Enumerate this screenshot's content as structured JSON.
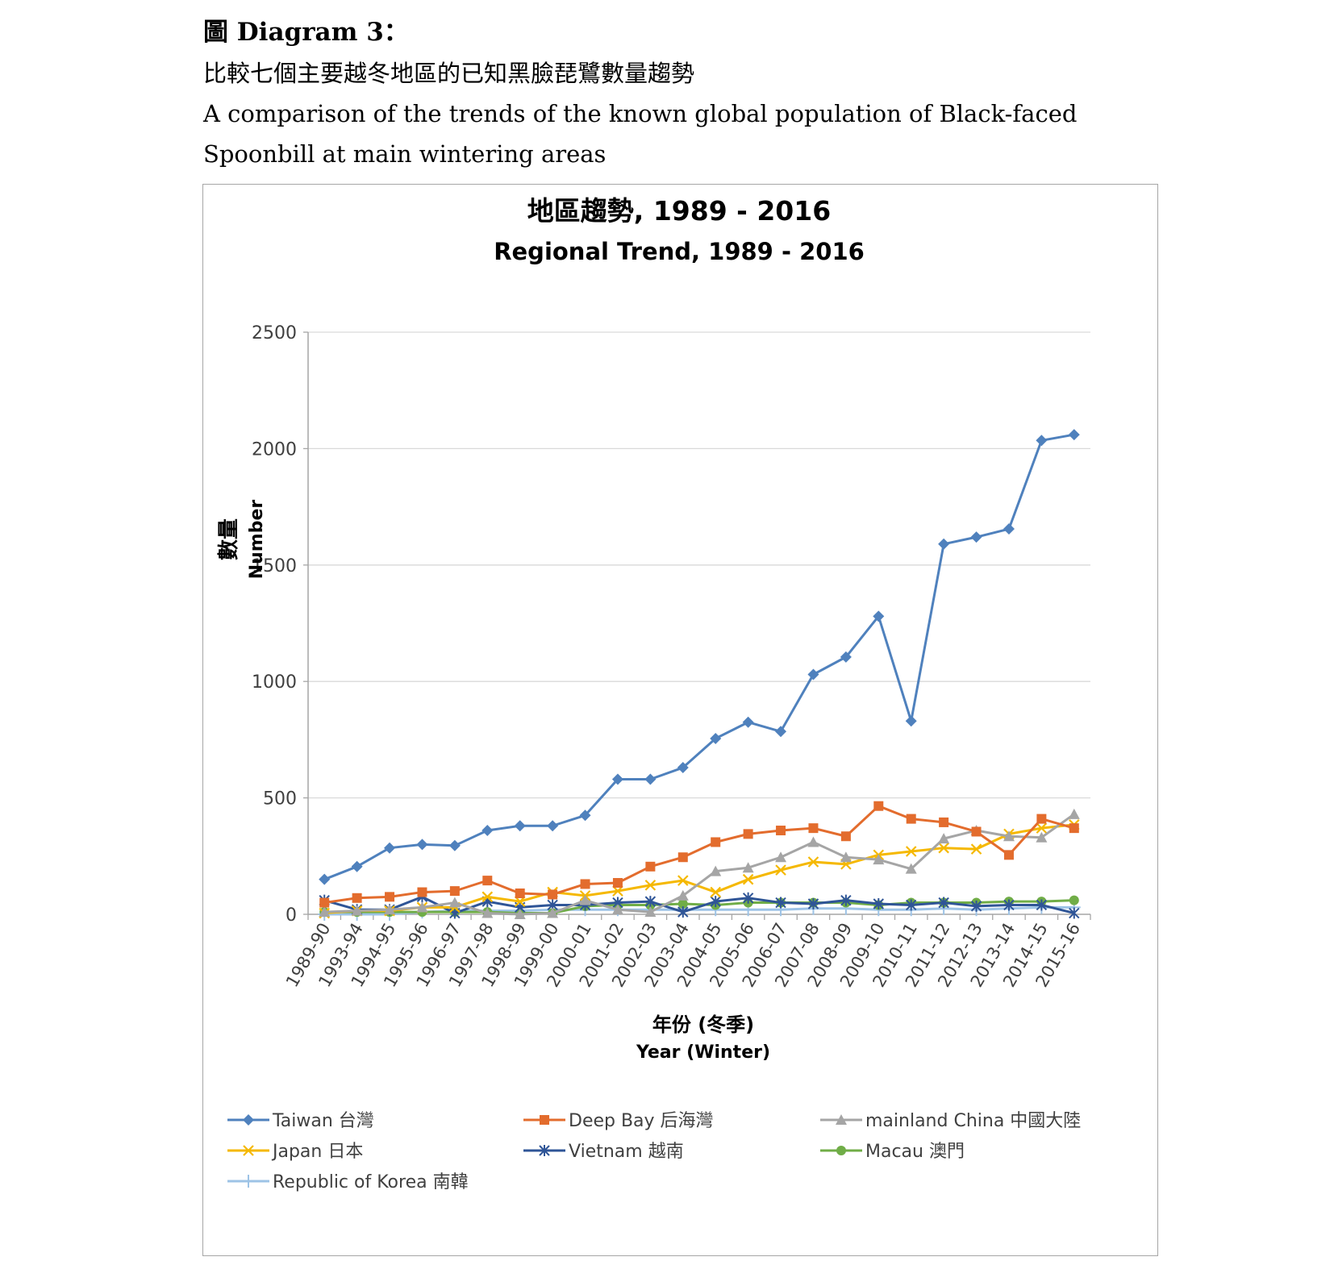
{
  "heading": {
    "title": "圖 Diagram 3：",
    "subtitle_zh": "比較七個主要越冬地區的已知黑臉琵鷺數量趨勢",
    "subtitle_en_1": "A comparison of the trends of the known global population of Black-faced",
    "subtitle_en_2": "Spoonbill at main wintering areas"
  },
  "chart_data": {
    "type": "line",
    "title_zh": "地區趨勢, 1989 - 2016",
    "title_en": "Regional Trend, 1989 - 2016",
    "ylabel_zh": "數量",
    "ylabel_en": "Number",
    "xlabel_zh": "年份 (冬季)",
    "xlabel_en": "Year (Winter)",
    "ylim": [
      0,
      2500
    ],
    "yticks": [
      0,
      500,
      1000,
      1500,
      2000,
      2500
    ],
    "grid": true,
    "legend_position": "bottom",
    "categories": [
      "1989-90",
      "1993-94",
      "1994-95",
      "1995-96",
      "1996-97",
      "1997-98",
      "1998-99",
      "1999-00",
      "2000-01",
      "2001-02",
      "2002-03",
      "2003-04",
      "2004-05",
      "2005-06",
      "2006-07",
      "2007-08",
      "2008-09",
      "2009-10",
      "2010-11",
      "2011-12",
      "2012-13",
      "2013-14",
      "2014-15",
      "2015-16"
    ],
    "series": [
      {
        "name": "Taiwan 台灣",
        "color": "#4f81bd",
        "marker": "diamond",
        "values": [
          150,
          205,
          285,
          300,
          295,
          360,
          380,
          380,
          425,
          580,
          580,
          630,
          755,
          825,
          785,
          1030,
          1105,
          1280,
          830,
          1590,
          1620,
          1655,
          2035,
          2060
        ]
      },
      {
        "name": "Deep Bay 后海灣",
        "color": "#e36c2d",
        "marker": "square",
        "values": [
          50,
          70,
          75,
          95,
          100,
          145,
          90,
          85,
          130,
          135,
          205,
          245,
          310,
          345,
          360,
          370,
          335,
          465,
          410,
          395,
          355,
          255,
          410,
          370
        ]
      },
      {
        "name": "mainland China 中國大陸",
        "color": "#a5a5a5",
        "marker": "triangle",
        "values": [
          10,
          15,
          20,
          30,
          50,
          5,
          0,
          5,
          60,
          20,
          10,
          80,
          185,
          200,
          245,
          310,
          245,
          235,
          195,
          325,
          360,
          335,
          330,
          430
        ]
      },
      {
        "name": "Japan 日本",
        "color": "#f5b800",
        "marker": "x",
        "values": [
          5,
          15,
          15,
          30,
          30,
          75,
          55,
          95,
          80,
          100,
          125,
          145,
          95,
          150,
          190,
          225,
          215,
          255,
          270,
          285,
          280,
          345,
          370,
          385
        ]
      },
      {
        "name": "Vietnam 越南",
        "color": "#2f5597",
        "marker": "star",
        "values": [
          60,
          20,
          20,
          75,
          5,
          55,
          30,
          40,
          40,
          50,
          55,
          10,
          55,
          70,
          50,
          45,
          60,
          45,
          40,
          50,
          35,
          40,
          40,
          5
        ]
      },
      {
        "name": "Macau 澳門",
        "color": "#70ad47",
        "marker": "circle",
        "values": [
          10,
          10,
          10,
          10,
          10,
          10,
          5,
          5,
          35,
          40,
          40,
          45,
          40,
          50,
          50,
          50,
          50,
          40,
          50,
          50,
          50,
          55,
          55,
          60
        ]
      },
      {
        "name": "Republic of Korea 南韓",
        "color": "#9dc3e6",
        "marker": "plus",
        "values": [
          0,
          0,
          0,
          10,
          15,
          15,
          15,
          20,
          20,
          20,
          20,
          20,
          20,
          20,
          20,
          25,
          25,
          20,
          20,
          25,
          20,
          25,
          30,
          30
        ]
      }
    ]
  }
}
